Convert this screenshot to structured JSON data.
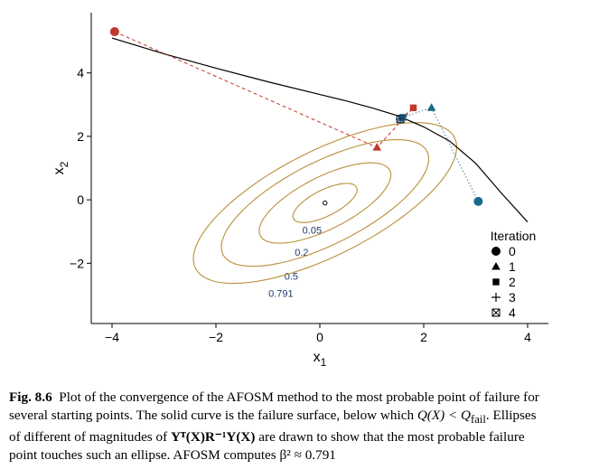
{
  "chart_data": {
    "type": "line",
    "xlabel": "x",
    "xlabel_sub": "1",
    "ylabel": "x",
    "ylabel_sub": "2",
    "xlim": [
      -4.4,
      4.4
    ],
    "ylim": [
      -3.9,
      5.9
    ],
    "xticks": [
      -4,
      -2,
      0,
      2,
      4
    ],
    "xtick_labels": [
      "−4",
      "−2",
      "0",
      "2",
      "4"
    ],
    "yticks": [
      -2,
      0,
      2,
      4
    ],
    "ytick_labels": [
      "−2",
      "0",
      "2",
      "4"
    ],
    "failure_surface": [
      [
        -4.0,
        5.1
      ],
      [
        -3.0,
        4.6
      ],
      [
        -2.0,
        4.15
      ],
      [
        -1.0,
        3.72
      ],
      [
        0.0,
        3.32
      ],
      [
        0.5,
        3.12
      ],
      [
        1.0,
        2.9
      ],
      [
        1.5,
        2.65
      ],
      [
        2.0,
        2.3
      ],
      [
        2.5,
        1.85
      ],
      [
        3.0,
        1.15
      ],
      [
        3.5,
        0.2
      ],
      [
        4.0,
        -0.7
      ]
    ],
    "ellipses": {
      "center": [
        0.1,
        -0.1
      ],
      "angle_deg": 45,
      "color": "#b8903a",
      "levels": [
        {
          "label": "0.05",
          "a": 0.8,
          "b": 0.35,
          "label_at": [
            -0.15,
            -0.95
          ]
        },
        {
          "label": "0.2",
          "a": 1.65,
          "b": 0.7,
          "label_at": [
            -0.35,
            -1.65
          ]
        },
        {
          "label": "0.5",
          "a": 2.6,
          "b": 1.1,
          "label_at": [
            -0.55,
            -2.4
          ]
        },
        {
          "label": "0.791",
          "a": 3.3,
          "b": 1.4,
          "label_at": [
            -0.75,
            -2.95
          ]
        }
      ],
      "center_marker_at": [
        0.1,
        -0.1
      ]
    },
    "paths": [
      {
        "color": "#c0392b",
        "style": "dashed",
        "points": [
          [
            -3.95,
            5.3
          ],
          [
            1.1,
            1.65
          ],
          [
            1.8,
            2.9
          ],
          [
            1.55,
            2.55
          ],
          [
            1.55,
            2.55
          ]
        ]
      },
      {
        "color": "#1a6a8a",
        "style": "dotted",
        "points": [
          [
            3.05,
            -0.05
          ],
          [
            2.15,
            2.9
          ],
          [
            1.6,
            2.6
          ],
          [
            1.55,
            2.55
          ],
          [
            1.55,
            2.55
          ]
        ]
      }
    ],
    "legend": {
      "title": "Iteration",
      "position": "right",
      "entries": [
        {
          "label": "0",
          "marker": "circle"
        },
        {
          "label": "1",
          "marker": "triangle"
        },
        {
          "label": "2",
          "marker": "square"
        },
        {
          "label": "3",
          "marker": "plus"
        },
        {
          "label": "4",
          "marker": "boxed-x"
        }
      ]
    }
  },
  "caption": {
    "label": "Fig. 8.6",
    "line1": "Plot of the convergence of the AFOSM method to the most probable point of failure for",
    "line2": "several starting points. The solid curve is the failure surface, below which ",
    "q_expr": "Q(X) < Q",
    "q_sub": "fail",
    "line2_end": ". Ellipses",
    "line3_start": "of different of magnitudes of ",
    "matrix_expr": "Yᵀ(X)R⁻¹Y(X)",
    "line3_end": " are drawn to show that the most probable failure",
    "line4": "point touches such an ellipse. AFOSM computes β² ≈ 0.791"
  }
}
